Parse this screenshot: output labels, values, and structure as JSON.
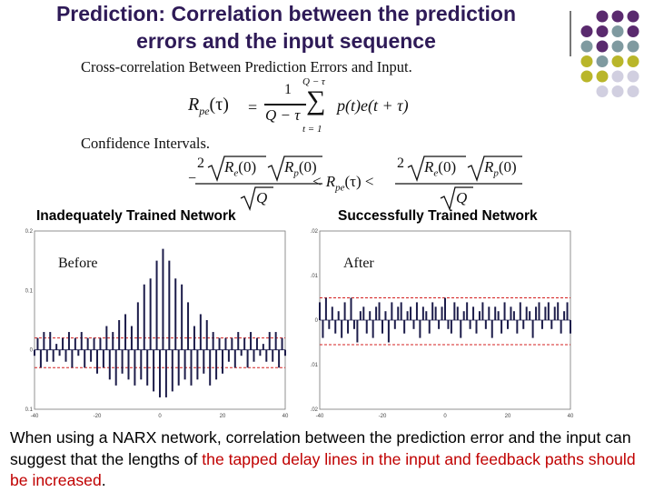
{
  "slide": {
    "title_line1": "Prediction: Correlation between the prediction",
    "title_line2": "errors and the input sequence"
  },
  "formula_image": {
    "heading": "Cross-correlation Between Prediction Errors and Input.",
    "lhs": "R",
    "lhs_sub": "pe",
    "lhs_arg": "(τ)",
    "equals": "=",
    "frac_num": "1",
    "frac_den": "Q − τ",
    "sum_upper": "Q − τ",
    "sum_lower": "t = 1",
    "summand": "p(t)e(t + τ)",
    "ci_heading": "Confidence Intervals.",
    "ci_left_coef": "2",
    "ci_minus": "−",
    "ci_re": "R",
    "ci_re_sub": "e",
    "ci_rp": "R",
    "ci_rp_sub": "p",
    "ci_zero": "(0)",
    "ci_sqrtq": "Q",
    "ci_middle": "< R",
    "ci_middle_sub": "pe",
    "ci_middle_tail": "(τ) <",
    "ci_right_coef": "2"
  },
  "captions": {
    "left": "Inadequately Trained Network",
    "right": "Successfully Trained Network"
  },
  "chart_data": [
    {
      "type": "bar",
      "label": "Before",
      "xlim": [
        -40,
        40
      ],
      "ylim": [
        -0.1,
        0.2
      ],
      "xticks": [
        "-40",
        "-20",
        "0",
        "20",
        "40"
      ],
      "yticks": [
        "0.2",
        "0.1",
        "0",
        "-0.1"
      ],
      "confidence_band": [
        -0.03,
        0.02
      ],
      "x": [
        -40,
        -39,
        -38,
        -37,
        -36,
        -35,
        -34,
        -33,
        -32,
        -31,
        -30,
        -29,
        -28,
        -27,
        -26,
        -25,
        -24,
        -23,
        -22,
        -21,
        -20,
        -19,
        -18,
        -17,
        -16,
        -15,
        -14,
        -13,
        -12,
        -11,
        -10,
        -9,
        -8,
        -7,
        -6,
        -5,
        -4,
        -3,
        -2,
        -1,
        0,
        1,
        2,
        3,
        4,
        5,
        6,
        7,
        8,
        9,
        10,
        11,
        12,
        13,
        14,
        15,
        16,
        17,
        18,
        19,
        20,
        21,
        22,
        23,
        24,
        25,
        26,
        27,
        28,
        29,
        30,
        31,
        32,
        33,
        34,
        35,
        36,
        37,
        38,
        39,
        40
      ],
      "values": [
        -0.01,
        0.02,
        -0.03,
        0.03,
        -0.02,
        0.03,
        -0.02,
        0.01,
        -0.01,
        0.02,
        -0.02,
        0.03,
        -0.03,
        0.02,
        -0.01,
        0.03,
        -0.03,
        0.02,
        -0.02,
        0.02,
        -0.04,
        0.02,
        -0.03,
        0.04,
        -0.05,
        0.03,
        -0.06,
        0.05,
        -0.04,
        0.06,
        -0.05,
        0.04,
        -0.06,
        0.08,
        -0.05,
        0.11,
        -0.06,
        0.12,
        -0.07,
        0.15,
        -0.08,
        0.17,
        -0.08,
        0.15,
        -0.07,
        0.12,
        -0.06,
        0.11,
        -0.05,
        0.08,
        -0.06,
        0.04,
        -0.05,
        0.06,
        -0.04,
        0.05,
        -0.06,
        0.03,
        -0.05,
        0.02,
        -0.04,
        0.02,
        -0.02,
        0.02,
        -0.03,
        0.03,
        -0.01,
        0.02,
        -0.03,
        0.03,
        -0.02,
        0.02,
        -0.01,
        0.01,
        -0.02,
        0.03,
        -0.02,
        0.03,
        -0.03,
        0.02,
        -0.01
      ]
    },
    {
      "type": "bar",
      "label": "After",
      "xlim": [
        -40,
        40
      ],
      "ylim": [
        -0.02,
        0.02
      ],
      "xticks": [
        "-40",
        "-20",
        "0",
        "20",
        "40"
      ],
      "yticks": [
        "0.02",
        "0.01",
        "0",
        "-0.01",
        "-0.02"
      ],
      "confidence_band": [
        -0.0055,
        0.005
      ],
      "x": [
        -40,
        -39,
        -38,
        -37,
        -36,
        -35,
        -34,
        -33,
        -32,
        -31,
        -30,
        -29,
        -28,
        -27,
        -26,
        -25,
        -24,
        -23,
        -22,
        -21,
        -20,
        -19,
        -18,
        -17,
        -16,
        -15,
        -14,
        -13,
        -12,
        -11,
        -10,
        -9,
        -8,
        -7,
        -6,
        -5,
        -4,
        -3,
        -2,
        -1,
        0,
        1,
        2,
        3,
        4,
        5,
        6,
        7,
        8,
        9,
        10,
        11,
        12,
        13,
        14,
        15,
        16,
        17,
        18,
        19,
        20,
        21,
        22,
        23,
        24,
        25,
        26,
        27,
        28,
        29,
        30,
        31,
        32,
        33,
        34,
        35,
        36,
        37,
        38,
        39,
        40
      ],
      "values": [
        0.004,
        -0.004,
        0.005,
        -0.002,
        0.003,
        -0.003,
        0.002,
        -0.004,
        0.004,
        -0.003,
        0.005,
        -0.002,
        -0.005,
        0.002,
        0.003,
        -0.003,
        0.002,
        -0.004,
        0.003,
        0.004,
        -0.003,
        0.002,
        -0.005,
        0.004,
        -0.002,
        0.003,
        0.004,
        -0.003,
        0.002,
        0.003,
        -0.002,
        0.004,
        -0.004,
        0.003,
        0.002,
        -0.003,
        0.004,
        0.003,
        -0.002,
        0.003,
        0.005,
        -0.002,
        -0.003,
        0.004,
        0.003,
        -0.004,
        0.002,
        0.004,
        -0.002,
        0.003,
        -0.003,
        0.002,
        0.004,
        -0.002,
        0.003,
        -0.004,
        0.003,
        0.002,
        -0.003,
        0.004,
        -0.002,
        0.003,
        0.002,
        -0.003,
        0.004,
        -0.002,
        0.003,
        0.002,
        -0.004,
        0.003,
        0.004,
        -0.002,
        0.003,
        0.004,
        -0.002,
        0.003,
        0.004,
        -0.003,
        0.002,
        0.004,
        -0.003
      ]
    }
  ],
  "body_text": {
    "part1": "When using a NARX network,  correlation between the prediction error and the input can suggest that the lengths of ",
    "part2": "the tapped delay lines in the input and feedback paths should be increased",
    "part3": ".",
    "highlight_color": "#c00000"
  },
  "theme": {
    "title_color": "#2e1a57",
    "bar_color": "#1c1c4a",
    "band_color": "#d42020",
    "dot_colors": [
      "#5a2a6e",
      "#7f9aa0",
      "#b9b62a",
      "#d1cfe0"
    ]
  }
}
